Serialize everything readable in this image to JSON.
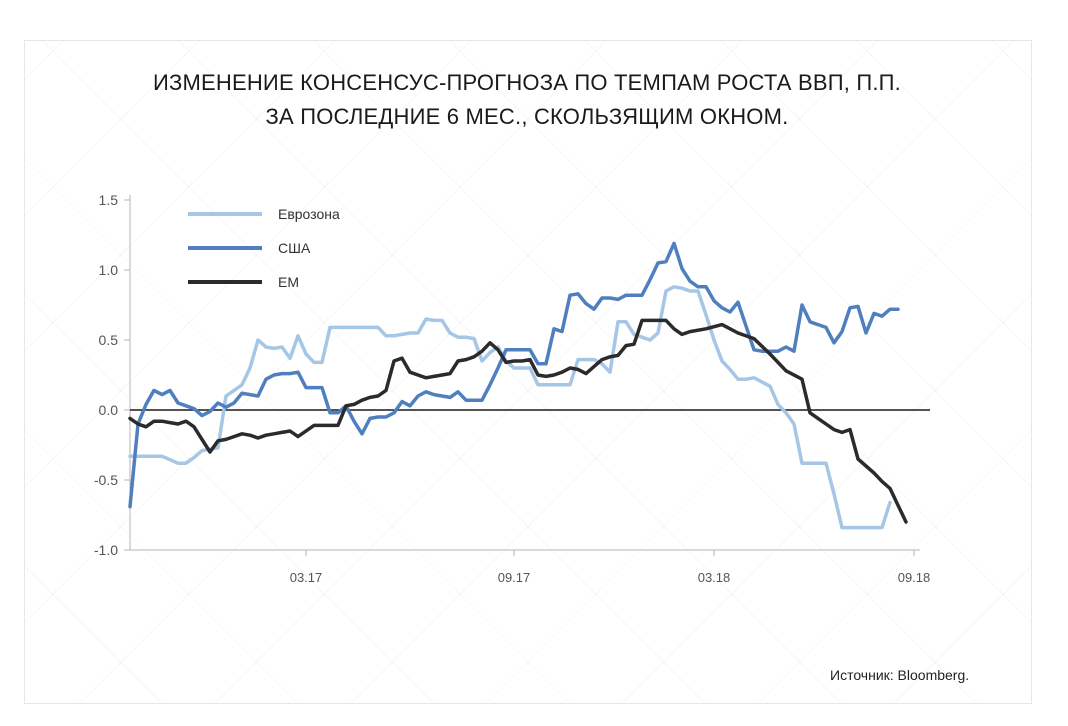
{
  "title_lines": [
    "ИЗМЕНЕНИЕ КОНСЕНСУС-ПРОГНОЗА ПО ТЕМПАМ РОСТА ВВП, П.П.",
    "ЗА ПОСЛЕДНИЕ 6 МЕС., СКОЛЬЗЯЩИМ ОКНОМ."
  ],
  "source": "Источник: Bloomberg.",
  "chart_data": {
    "type": "line",
    "ylim": [
      -1.0,
      1.5
    ],
    "yticks": [
      "1.5",
      "1.0",
      "0.5",
      "0.0",
      "-0.5",
      "-1.0"
    ],
    "ytick_values": [
      1.5,
      1.0,
      0.5,
      0.0,
      -0.5,
      -1.0
    ],
    "xlim": [
      0,
      100
    ],
    "xtick_labels": [
      "03.17",
      "09.17",
      "03.18",
      "09.18"
    ],
    "xtick_values": [
      22,
      48,
      73,
      98
    ],
    "grid": false,
    "legend_placement": "top-left",
    "zero_line": true,
    "series": [
      {
        "name": "Еврозона",
        "color": "#a6c6e6",
        "points": [
          [
            0,
            -0.33
          ],
          [
            2,
            -0.33
          ],
          [
            4,
            -0.33
          ],
          [
            6,
            -0.38
          ],
          [
            7,
            -0.38
          ],
          [
            8,
            -0.34
          ],
          [
            9,
            -0.29
          ],
          [
            10,
            -0.28
          ],
          [
            11,
            -0.27
          ],
          [
            12,
            0.1
          ],
          [
            13,
            0.14
          ],
          [
            14,
            0.18
          ],
          [
            15,
            0.3
          ],
          [
            16,
            0.5
          ],
          [
            17,
            0.45
          ],
          [
            18,
            0.44
          ],
          [
            19,
            0.45
          ],
          [
            20,
            0.37
          ],
          [
            21,
            0.53
          ],
          [
            22,
            0.4
          ],
          [
            23,
            0.34
          ],
          [
            24,
            0.34
          ],
          [
            25,
            0.59
          ],
          [
            27,
            0.59
          ],
          [
            29,
            0.59
          ],
          [
            31,
            0.59
          ],
          [
            32,
            0.53
          ],
          [
            33,
            0.53
          ],
          [
            34,
            0.54
          ],
          [
            35,
            0.55
          ],
          [
            36,
            0.55
          ],
          [
            37,
            0.65
          ],
          [
            38,
            0.64
          ],
          [
            39,
            0.64
          ],
          [
            40,
            0.55
          ],
          [
            41,
            0.52
          ],
          [
            42,
            0.52
          ],
          [
            43,
            0.51
          ],
          [
            44,
            0.35
          ],
          [
            45,
            0.41
          ],
          [
            46,
            0.45
          ],
          [
            47,
            0.35
          ],
          [
            48,
            0.3
          ],
          [
            49,
            0.3
          ],
          [
            50,
            0.3
          ],
          [
            51,
            0.18
          ],
          [
            52,
            0.18
          ],
          [
            53,
            0.18
          ],
          [
            54,
            0.18
          ],
          [
            55,
            0.18
          ],
          [
            56,
            0.36
          ],
          [
            57,
            0.36
          ],
          [
            58,
            0.36
          ],
          [
            59,
            0.33
          ],
          [
            60,
            0.27
          ],
          [
            61,
            0.63
          ],
          [
            62,
            0.63
          ],
          [
            63,
            0.54
          ],
          [
            64,
            0.52
          ],
          [
            65,
            0.5
          ],
          [
            66,
            0.55
          ],
          [
            67,
            0.85
          ],
          [
            68,
            0.88
          ],
          [
            69,
            0.87
          ],
          [
            70,
            0.85
          ],
          [
            71,
            0.85
          ],
          [
            72,
            0.68
          ],
          [
            73,
            0.5
          ],
          [
            74,
            0.35
          ],
          [
            75,
            0.29
          ],
          [
            76,
            0.22
          ],
          [
            77,
            0.22
          ],
          [
            78,
            0.23
          ],
          [
            79,
            0.2
          ],
          [
            80,
            0.17
          ],
          [
            81,
            0.04
          ],
          [
            82,
            -0.02
          ],
          [
            83,
            -0.1
          ],
          [
            84,
            -0.38
          ],
          [
            85,
            -0.38
          ],
          [
            86,
            -0.38
          ],
          [
            87,
            -0.38
          ],
          [
            88,
            -0.6
          ],
          [
            89,
            -0.84
          ],
          [
            90,
            -0.84
          ],
          [
            91,
            -0.84
          ],
          [
            92,
            -0.84
          ],
          [
            93,
            -0.84
          ],
          [
            94,
            -0.84
          ],
          [
            95,
            -0.66
          ]
        ]
      },
      {
        "name": "США",
        "color": "#4f7fbf",
        "points": [
          [
            0,
            -0.69
          ],
          [
            1,
            -0.1
          ],
          [
            2,
            0.04
          ],
          [
            3,
            0.14
          ],
          [
            4,
            0.11
          ],
          [
            5,
            0.14
          ],
          [
            6,
            0.05
          ],
          [
            7,
            0.03
          ],
          [
            8,
            0.01
          ],
          [
            9,
            -0.04
          ],
          [
            10,
            -0.01
          ],
          [
            11,
            0.05
          ],
          [
            12,
            0.02
          ],
          [
            13,
            0.05
          ],
          [
            14,
            0.12
          ],
          [
            15,
            0.11
          ],
          [
            16,
            0.1
          ],
          [
            17,
            0.22
          ],
          [
            18,
            0.25
          ],
          [
            19,
            0.26
          ],
          [
            20,
            0.26
          ],
          [
            21,
            0.27
          ],
          [
            22,
            0.16
          ],
          [
            23,
            0.16
          ],
          [
            24,
            0.16
          ],
          [
            25,
            -0.02
          ],
          [
            26,
            -0.02
          ],
          [
            27,
            0.03
          ],
          [
            28,
            -0.08
          ],
          [
            29,
            -0.17
          ],
          [
            30,
            -0.06
          ],
          [
            31,
            -0.05
          ],
          [
            32,
            -0.05
          ],
          [
            33,
            -0.02
          ],
          [
            34,
            0.06
          ],
          [
            35,
            0.03
          ],
          [
            36,
            0.1
          ],
          [
            37,
            0.13
          ],
          [
            38,
            0.11
          ],
          [
            39,
            0.1
          ],
          [
            40,
            0.09
          ],
          [
            41,
            0.13
          ],
          [
            42,
            0.07
          ],
          [
            43,
            0.07
          ],
          [
            44,
            0.07
          ],
          [
            45,
            0.18
          ],
          [
            46,
            0.3
          ],
          [
            47,
            0.43
          ],
          [
            48,
            0.43
          ],
          [
            49,
            0.43
          ],
          [
            50,
            0.43
          ],
          [
            51,
            0.33
          ],
          [
            52,
            0.33
          ],
          [
            53,
            0.58
          ],
          [
            54,
            0.56
          ],
          [
            55,
            0.82
          ],
          [
            56,
            0.83
          ],
          [
            57,
            0.76
          ],
          [
            58,
            0.72
          ],
          [
            59,
            0.8
          ],
          [
            60,
            0.8
          ],
          [
            61,
            0.79
          ],
          [
            62,
            0.82
          ],
          [
            63,
            0.82
          ],
          [
            64,
            0.82
          ],
          [
            65,
            0.93
          ],
          [
            66,
            1.05
          ],
          [
            67,
            1.06
          ],
          [
            68,
            1.19
          ],
          [
            69,
            1.01
          ],
          [
            70,
            0.92
          ],
          [
            71,
            0.88
          ],
          [
            72,
            0.88
          ],
          [
            73,
            0.78
          ],
          [
            74,
            0.73
          ],
          [
            75,
            0.7
          ],
          [
            76,
            0.77
          ],
          [
            77,
            0.6
          ],
          [
            78,
            0.43
          ],
          [
            79,
            0.42
          ],
          [
            80,
            0.42
          ],
          [
            81,
            0.42
          ],
          [
            82,
            0.45
          ],
          [
            83,
            0.42
          ],
          [
            84,
            0.75
          ],
          [
            85,
            0.63
          ],
          [
            86,
            0.61
          ],
          [
            87,
            0.59
          ],
          [
            88,
            0.48
          ],
          [
            89,
            0.56
          ],
          [
            90,
            0.73
          ],
          [
            91,
            0.74
          ],
          [
            92,
            0.55
          ],
          [
            93,
            0.69
          ],
          [
            94,
            0.67
          ],
          [
            95,
            0.72
          ],
          [
            96,
            0.72
          ]
        ]
      },
      {
        "name": "ЕМ",
        "color": "#2b2b2b",
        "points": [
          [
            0,
            -0.06
          ],
          [
            1,
            -0.1
          ],
          [
            2,
            -0.12
          ],
          [
            3,
            -0.08
          ],
          [
            4,
            -0.08
          ],
          [
            5,
            -0.09
          ],
          [
            6,
            -0.1
          ],
          [
            7,
            -0.08
          ],
          [
            8,
            -0.12
          ],
          [
            9,
            -0.21
          ],
          [
            10,
            -0.3
          ],
          [
            11,
            -0.22
          ],
          [
            12,
            -0.21
          ],
          [
            13,
            -0.19
          ],
          [
            14,
            -0.17
          ],
          [
            15,
            -0.18
          ],
          [
            16,
            -0.2
          ],
          [
            17,
            -0.18
          ],
          [
            18,
            -0.17
          ],
          [
            19,
            -0.16
          ],
          [
            20,
            -0.15
          ],
          [
            21,
            -0.19
          ],
          [
            22,
            -0.15
          ],
          [
            23,
            -0.11
          ],
          [
            24,
            -0.11
          ],
          [
            25,
            -0.11
          ],
          [
            26,
            -0.11
          ],
          [
            27,
            0.03
          ],
          [
            28,
            0.04
          ],
          [
            29,
            0.07
          ],
          [
            30,
            0.09
          ],
          [
            31,
            0.1
          ],
          [
            32,
            0.14
          ],
          [
            33,
            0.35
          ],
          [
            34,
            0.37
          ],
          [
            35,
            0.27
          ],
          [
            36,
            0.25
          ],
          [
            37,
            0.23
          ],
          [
            38,
            0.24
          ],
          [
            39,
            0.25
          ],
          [
            40,
            0.26
          ],
          [
            41,
            0.35
          ],
          [
            42,
            0.36
          ],
          [
            43,
            0.38
          ],
          [
            44,
            0.42
          ],
          [
            45,
            0.48
          ],
          [
            46,
            0.43
          ],
          [
            47,
            0.34
          ],
          [
            48,
            0.35
          ],
          [
            49,
            0.35
          ],
          [
            50,
            0.36
          ],
          [
            51,
            0.25
          ],
          [
            52,
            0.24
          ],
          [
            53,
            0.25
          ],
          [
            54,
            0.27
          ],
          [
            55,
            0.3
          ],
          [
            56,
            0.29
          ],
          [
            57,
            0.26
          ],
          [
            58,
            0.31
          ],
          [
            59,
            0.36
          ],
          [
            60,
            0.38
          ],
          [
            61,
            0.39
          ],
          [
            62,
            0.46
          ],
          [
            63,
            0.47
          ],
          [
            64,
            0.64
          ],
          [
            65,
            0.64
          ],
          [
            66,
            0.64
          ],
          [
            67,
            0.64
          ],
          [
            68,
            0.58
          ],
          [
            69,
            0.54
          ],
          [
            70,
            0.56
          ],
          [
            72,
            0.58
          ],
          [
            74,
            0.61
          ],
          [
            76,
            0.55
          ],
          [
            78,
            0.51
          ],
          [
            80,
            0.4
          ],
          [
            82,
            0.28
          ],
          [
            84,
            0.22
          ],
          [
            85,
            -0.02
          ],
          [
            86,
            -0.06
          ],
          [
            87,
            -0.1
          ],
          [
            88,
            -0.14
          ],
          [
            89,
            -0.16
          ],
          [
            90,
            -0.14
          ],
          [
            91,
            -0.35
          ],
          [
            92,
            -0.4
          ],
          [
            93,
            -0.45
          ],
          [
            94,
            -0.51
          ],
          [
            95,
            -0.56
          ],
          [
            96,
            -0.68
          ],
          [
            97,
            -0.8
          ]
        ]
      }
    ]
  }
}
